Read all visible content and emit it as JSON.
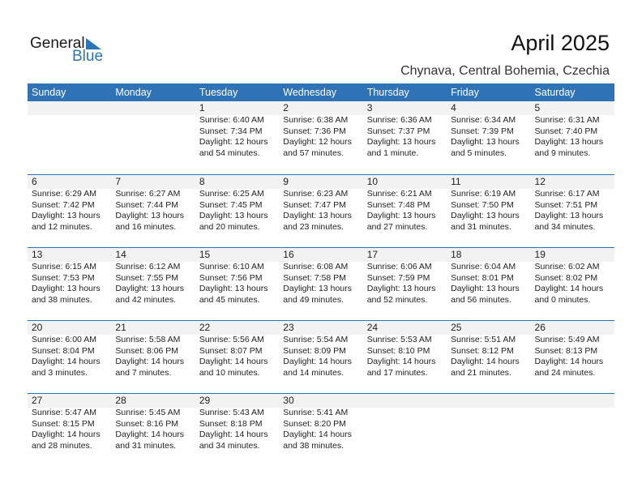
{
  "logo": {
    "general": "General",
    "blue": "Blue"
  },
  "title": "April 2025",
  "location": "Chynava, Central Bohemia, Czechia",
  "weekdays": [
    "Sunday",
    "Monday",
    "Tuesday",
    "Wednesday",
    "Thursday",
    "Friday",
    "Saturday"
  ],
  "weeks": [
    [
      null,
      null,
      {
        "day": "1",
        "sunrise": "Sunrise: 6:40 AM",
        "sunset": "Sunset: 7:34 PM",
        "daylight": "Daylight: 12 hours",
        "minutes": "and 54 minutes."
      },
      {
        "day": "2",
        "sunrise": "Sunrise: 6:38 AM",
        "sunset": "Sunset: 7:36 PM",
        "daylight": "Daylight: 12 hours",
        "minutes": "and 57 minutes."
      },
      {
        "day": "3",
        "sunrise": "Sunrise: 6:36 AM",
        "sunset": "Sunset: 7:37 PM",
        "daylight": "Daylight: 13 hours",
        "minutes": "and 1 minute."
      },
      {
        "day": "4",
        "sunrise": "Sunrise: 6:34 AM",
        "sunset": "Sunset: 7:39 PM",
        "daylight": "Daylight: 13 hours",
        "minutes": "and 5 minutes."
      },
      {
        "day": "5",
        "sunrise": "Sunrise: 6:31 AM",
        "sunset": "Sunset: 7:40 PM",
        "daylight": "Daylight: 13 hours",
        "minutes": "and 9 minutes."
      }
    ],
    [
      {
        "day": "6",
        "sunrise": "Sunrise: 6:29 AM",
        "sunset": "Sunset: 7:42 PM",
        "daylight": "Daylight: 13 hours",
        "minutes": "and 12 minutes."
      },
      {
        "day": "7",
        "sunrise": "Sunrise: 6:27 AM",
        "sunset": "Sunset: 7:44 PM",
        "daylight": "Daylight: 13 hours",
        "minutes": "and 16 minutes."
      },
      {
        "day": "8",
        "sunrise": "Sunrise: 6:25 AM",
        "sunset": "Sunset: 7:45 PM",
        "daylight": "Daylight: 13 hours",
        "minutes": "and 20 minutes."
      },
      {
        "day": "9",
        "sunrise": "Sunrise: 6:23 AM",
        "sunset": "Sunset: 7:47 PM",
        "daylight": "Daylight: 13 hours",
        "minutes": "and 23 minutes."
      },
      {
        "day": "10",
        "sunrise": "Sunrise: 6:21 AM",
        "sunset": "Sunset: 7:48 PM",
        "daylight": "Daylight: 13 hours",
        "minutes": "and 27 minutes."
      },
      {
        "day": "11",
        "sunrise": "Sunrise: 6:19 AM",
        "sunset": "Sunset: 7:50 PM",
        "daylight": "Daylight: 13 hours",
        "minutes": "and 31 minutes."
      },
      {
        "day": "12",
        "sunrise": "Sunrise: 6:17 AM",
        "sunset": "Sunset: 7:51 PM",
        "daylight": "Daylight: 13 hours",
        "minutes": "and 34 minutes."
      }
    ],
    [
      {
        "day": "13",
        "sunrise": "Sunrise: 6:15 AM",
        "sunset": "Sunset: 7:53 PM",
        "daylight": "Daylight: 13 hours",
        "minutes": "and 38 minutes."
      },
      {
        "day": "14",
        "sunrise": "Sunrise: 6:12 AM",
        "sunset": "Sunset: 7:55 PM",
        "daylight": "Daylight: 13 hours",
        "minutes": "and 42 minutes."
      },
      {
        "day": "15",
        "sunrise": "Sunrise: 6:10 AM",
        "sunset": "Sunset: 7:56 PM",
        "daylight": "Daylight: 13 hours",
        "minutes": "and 45 minutes."
      },
      {
        "day": "16",
        "sunrise": "Sunrise: 6:08 AM",
        "sunset": "Sunset: 7:58 PM",
        "daylight": "Daylight: 13 hours",
        "minutes": "and 49 minutes."
      },
      {
        "day": "17",
        "sunrise": "Sunrise: 6:06 AM",
        "sunset": "Sunset: 7:59 PM",
        "daylight": "Daylight: 13 hours",
        "minutes": "and 52 minutes."
      },
      {
        "day": "18",
        "sunrise": "Sunrise: 6:04 AM",
        "sunset": "Sunset: 8:01 PM",
        "daylight": "Daylight: 13 hours",
        "minutes": "and 56 minutes."
      },
      {
        "day": "19",
        "sunrise": "Sunrise: 6:02 AM",
        "sunset": "Sunset: 8:02 PM",
        "daylight": "Daylight: 14 hours",
        "minutes": "and 0 minutes."
      }
    ],
    [
      {
        "day": "20",
        "sunrise": "Sunrise: 6:00 AM",
        "sunset": "Sunset: 8:04 PM",
        "daylight": "Daylight: 14 hours",
        "minutes": "and 3 minutes."
      },
      {
        "day": "21",
        "sunrise": "Sunrise: 5:58 AM",
        "sunset": "Sunset: 8:06 PM",
        "daylight": "Daylight: 14 hours",
        "minutes": "and 7 minutes."
      },
      {
        "day": "22",
        "sunrise": "Sunrise: 5:56 AM",
        "sunset": "Sunset: 8:07 PM",
        "daylight": "Daylight: 14 hours",
        "minutes": "and 10 minutes."
      },
      {
        "day": "23",
        "sunrise": "Sunrise: 5:54 AM",
        "sunset": "Sunset: 8:09 PM",
        "daylight": "Daylight: 14 hours",
        "minutes": "and 14 minutes."
      },
      {
        "day": "24",
        "sunrise": "Sunrise: 5:53 AM",
        "sunset": "Sunset: 8:10 PM",
        "daylight": "Daylight: 14 hours",
        "minutes": "and 17 minutes."
      },
      {
        "day": "25",
        "sunrise": "Sunrise: 5:51 AM",
        "sunset": "Sunset: 8:12 PM",
        "daylight": "Daylight: 14 hours",
        "minutes": "and 21 minutes."
      },
      {
        "day": "26",
        "sunrise": "Sunrise: 5:49 AM",
        "sunset": "Sunset: 8:13 PM",
        "daylight": "Daylight: 14 hours",
        "minutes": "and 24 minutes."
      }
    ],
    [
      {
        "day": "27",
        "sunrise": "Sunrise: 5:47 AM",
        "sunset": "Sunset: 8:15 PM",
        "daylight": "Daylight: 14 hours",
        "minutes": "and 28 minutes."
      },
      {
        "day": "28",
        "sunrise": "Sunrise: 5:45 AM",
        "sunset": "Sunset: 8:16 PM",
        "daylight": "Daylight: 14 hours",
        "minutes": "and 31 minutes."
      },
      {
        "day": "29",
        "sunrise": "Sunrise: 5:43 AM",
        "sunset": "Sunset: 8:18 PM",
        "daylight": "Daylight: 14 hours",
        "minutes": "and 34 minutes."
      },
      {
        "day": "30",
        "sunrise": "Sunrise: 5:41 AM",
        "sunset": "Sunset: 8:20 PM",
        "daylight": "Daylight: 14 hours",
        "minutes": "and 38 minutes."
      },
      null,
      null,
      null
    ]
  ],
  "colors": {
    "accent": "#2f72b5",
    "strip": "#f2f2f2"
  }
}
